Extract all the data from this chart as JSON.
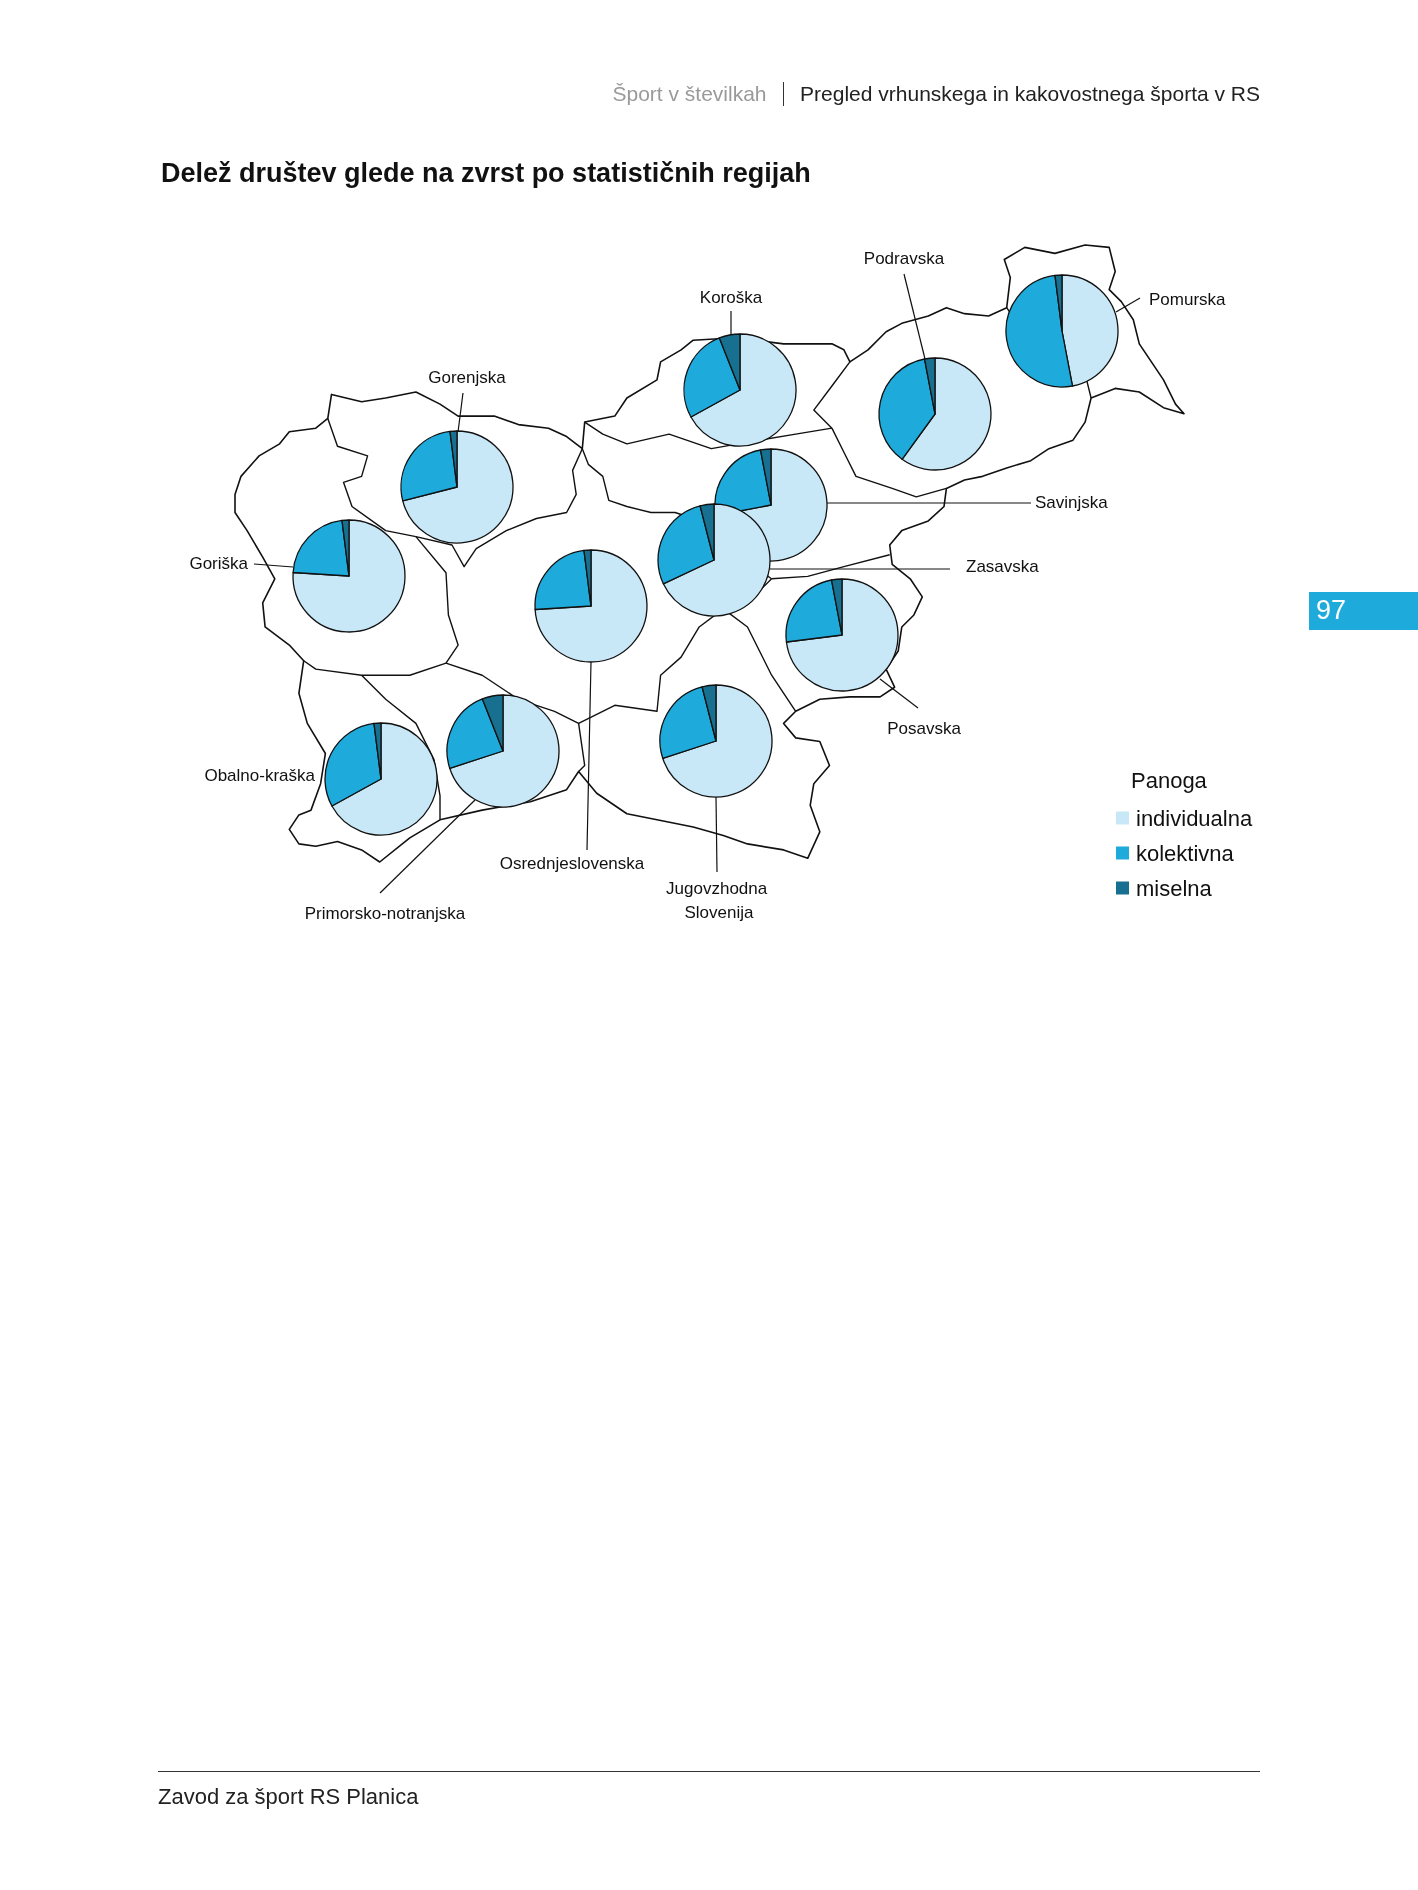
{
  "chart_data": {
    "type": "pie",
    "title": "Delež društev glede na zvrst po statističnih regijah",
    "categories": [
      "individualna",
      "kolektivna",
      "miselna"
    ],
    "colors": [
      "#c9e8f7",
      "#1eabdc",
      "#17708f"
    ],
    "legend": "right",
    "legend_title": "Panoga",
    "series": [
      {
        "name": "Gorenjska",
        "values": [
          71,
          27,
          2
        ]
      },
      {
        "name": "Goriška",
        "values": [
          76,
          22,
          2
        ]
      },
      {
        "name": "Koroška",
        "values": [
          67,
          27,
          6
        ]
      },
      {
        "name": "Podravska",
        "values": [
          60,
          37,
          3
        ]
      },
      {
        "name": "Pomurska",
        "values": [
          47,
          51,
          2
        ]
      },
      {
        "name": "Savinjska",
        "values": [
          72,
          25,
          3
        ]
      },
      {
        "name": "Zasavska",
        "values": [
          68,
          28,
          4
        ]
      },
      {
        "name": "Osrednjeslovenska",
        "values": [
          74,
          24,
          2
        ]
      },
      {
        "name": "Posavska",
        "values": [
          73,
          24,
          3
        ]
      },
      {
        "name": "Jugovzhodna Slovenija",
        "values": [
          70,
          26,
          4
        ]
      },
      {
        "name": "Obalno-kraška",
        "values": [
          67,
          31,
          2
        ]
      },
      {
        "name": "Primorsko-notranjska",
        "values": [
          70,
          24,
          6
        ]
      }
    ],
    "annotations": [
      "Šport v številkah",
      "Pregled vrhunskega in kakovostnega športa v RS",
      "97",
      "Zavod za šport RS Planica"
    ]
  }
}
